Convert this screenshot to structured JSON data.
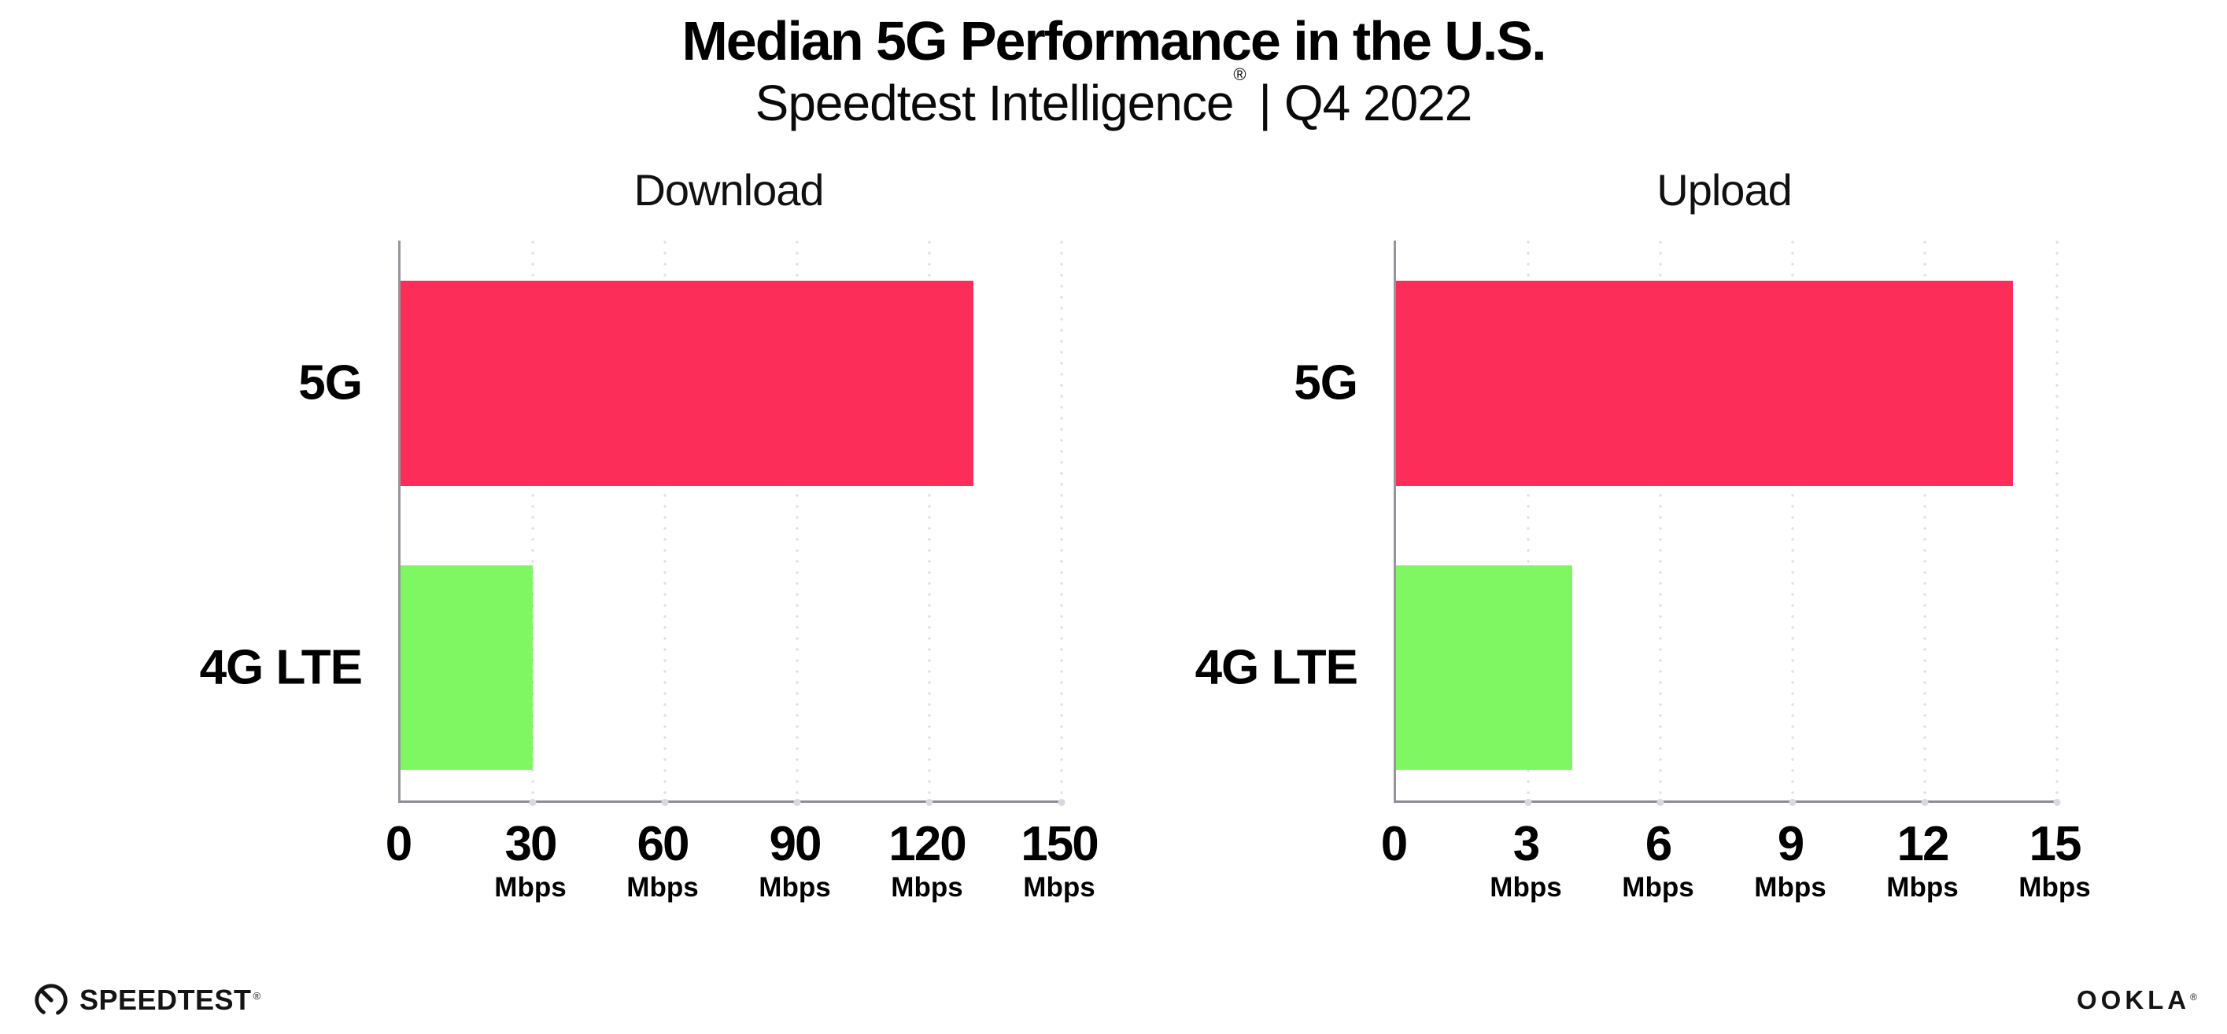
{
  "header": {
    "title": "Median 5G Performance in the U.S.",
    "subtitle_brand": "Speedtest Intelligence",
    "subtitle_reg": "®",
    "subtitle_rest": " | Q4 2022"
  },
  "footer": {
    "speedtest_label": "SPEEDTEST",
    "speedtest_reg": "®",
    "ookla_label": "OOKLA",
    "ookla_reg": "®"
  },
  "colors": {
    "bar_5g_pink": "#FD2D59",
    "bar_4g_green": "#7EF763",
    "axis_line": "#96959d",
    "gridline_dot": "#dfdee9",
    "text": "#000000",
    "background": "#ffffff"
  },
  "chart_data": [
    {
      "type": "bar",
      "orientation": "horizontal",
      "title": "Download",
      "categories": [
        "5G",
        "4G LTE"
      ],
      "values": [
        130,
        30
      ],
      "unit": "Mbps",
      "xlim": [
        0,
        150
      ],
      "xticks": [
        0,
        30,
        60,
        90,
        120,
        150
      ],
      "bar_colors": [
        "#FD2D59",
        "#7EF763"
      ],
      "grid": "dotted-vertical",
      "legend": "none"
    },
    {
      "type": "bar",
      "orientation": "horizontal",
      "title": "Upload",
      "categories": [
        "5G",
        "4G LTE"
      ],
      "values": [
        14,
        4
      ],
      "unit": "Mbps",
      "xlim": [
        0,
        15
      ],
      "xticks": [
        0,
        3,
        6,
        9,
        12,
        15
      ],
      "bar_colors": [
        "#FD2D59",
        "#7EF763"
      ],
      "grid": "dotted-vertical",
      "legend": "none"
    }
  ]
}
